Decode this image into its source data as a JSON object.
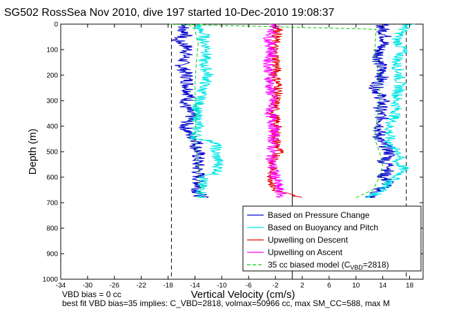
{
  "chart_data": {
    "type": "line",
    "title": "SG502 RossSea Nov 2010, dive 197 started 10-Dec-2010 19:08:37",
    "xlabel": "Vertical Velocity (cm/s)",
    "ylabel": "Depth (m)",
    "xlim": [
      -34,
      20
    ],
    "ylim": [
      1000,
      0
    ],
    "xticks": [
      -34,
      -30,
      -26,
      -22,
      -18,
      -14,
      -10,
      -6,
      -2,
      2,
      6,
      10,
      14,
      18
    ],
    "yticks": [
      0,
      100,
      200,
      300,
      400,
      500,
      600,
      700,
      800,
      900,
      1000
    ],
    "grid": false,
    "legend_position": "bottom-right",
    "vertical_lines": [
      {
        "x": -17.5,
        "style": "dashed",
        "color": "#000000"
      },
      {
        "x": 0.5,
        "style": "solid",
        "color": "#000000"
      },
      {
        "x": 17.5,
        "style": "dashed",
        "color": "#000000"
      }
    ],
    "series": [
      {
        "name": "Based on Pressure Change",
        "color": "#0000cc",
        "style": "solid",
        "descent": {
          "depth": [
            0,
            20,
            40,
            60,
            80,
            100,
            130,
            160,
            200,
            240,
            280,
            320,
            360,
            400,
            440,
            460,
            480,
            500,
            540,
            580,
            620,
            660,
            680
          ],
          "velocity": [
            -15,
            -16,
            -15,
            -17,
            -15.5,
            -15,
            -15.5,
            -16,
            -15.2,
            -15,
            -14.8,
            -15.5,
            -14.5,
            -15.5,
            -14.5,
            -13.5,
            -13.8,
            -13.5,
            -13.6,
            -13.5,
            -13.4,
            -13.5,
            -13
          ]
        },
        "ascent": {
          "depth": [
            680,
            660,
            620,
            600,
            580,
            560,
            540,
            520,
            500,
            480,
            460,
            420,
            380,
            340,
            300,
            250,
            200,
            150,
            100,
            60,
            20,
            0
          ],
          "velocity": [
            12,
            13,
            15,
            14,
            14.5,
            15.5,
            14,
            15,
            15,
            14.5,
            13.5,
            13.5,
            14,
            13.5,
            14,
            13,
            14,
            13.5,
            13.5,
            14.5,
            14,
            14
          ]
        }
      },
      {
        "name": "Based on Buoyancy and Pitch",
        "color": "#00e5e5",
        "style": "solid",
        "descent": {
          "depth": [
            0,
            20,
            40,
            60,
            100,
            150,
            200,
            250,
            300,
            350,
            400,
            450,
            460,
            470,
            500,
            540,
            580,
            600,
            620,
            660,
            680
          ],
          "velocity": [
            -13.5,
            -13.5,
            -12.5,
            -12.8,
            -12,
            -12.8,
            -12,
            -12.8,
            -13.3,
            -13.8,
            -13.5,
            -14,
            -11,
            -10.8,
            -11,
            -10.5,
            -10.5,
            -12.5,
            -13,
            -13,
            -13
          ]
        },
        "ascent": {
          "depth": [
            680,
            650,
            620,
            600,
            580,
            560,
            540,
            520,
            500,
            480,
            450,
            400,
            350,
            300,
            250,
            200,
            150,
            100,
            60,
            20,
            0
          ],
          "velocity": [
            12,
            14,
            15,
            16,
            17,
            17,
            16,
            16.5,
            16.5,
            15,
            15,
            15,
            16,
            16,
            16.5,
            16.5,
            16,
            17,
            16,
            17,
            18
          ]
        }
      },
      {
        "name": "Upwelling on Descent",
        "color": "#e00000",
        "style": "solid",
        "descent": {
          "depth": [
            0,
            20,
            60,
            100,
            150,
            200,
            250,
            300,
            350,
            400,
            450,
            500,
            550,
            600,
            650,
            680
          ],
          "velocity": [
            -2,
            -1.5,
            -2,
            -2.3,
            -1.8,
            -2,
            -1.5,
            -2,
            -2.2,
            -1.8,
            -2,
            -1.5,
            -2.5,
            -2.5,
            -2.2,
            1.5
          ]
        }
      },
      {
        "name": "Upwelling on Ascent",
        "color": "#ff00ff",
        "style": "solid",
        "ascent": {
          "depth": [
            680,
            650,
            600,
            550,
            500,
            450,
            400,
            350,
            300,
            250,
            200,
            150,
            100,
            60,
            20,
            0
          ],
          "velocity": [
            -1,
            -1.5,
            -2,
            -2.5,
            -2.5,
            -2.3,
            -2.2,
            -2.8,
            -2.5,
            -2.8,
            -2.8,
            -3,
            -2.5,
            -3,
            -2.2,
            -2
          ]
        }
      },
      {
        "name": "35 cc biased model (C_VBD=2818)",
        "legend_main": "35 cc biased model (C",
        "legend_sub": "VBD",
        "legend_tail": "=2818)",
        "color": "#00cc00",
        "style": "dashed",
        "descent": {
          "depth": [
            0,
            20,
            80,
            150,
            250,
            350,
            450,
            550,
            650,
            680
          ],
          "velocity": [
            -15,
            -14,
            -13.5,
            -13.8,
            -14,
            -13.8,
            -14,
            -13.5,
            -13.2,
            -13
          ]
        },
        "ascent": {
          "depth": [
            680,
            650,
            600,
            550,
            500,
            450,
            400,
            300,
            200,
            150,
            100,
            20,
            0
          ],
          "velocity": [
            10,
            12.5,
            13.5,
            14,
            13.5,
            12.8,
            13,
            13.5,
            13.5,
            13,
            12.8,
            13,
            -18
          ]
        }
      }
    ]
  },
  "footer": {
    "line1": "VBD bias = 0 cc",
    "line2": "best fit VBD bias=35 implies: C_VBD=2818, volmax=50966 cc, max SM_CC=588, max M"
  }
}
